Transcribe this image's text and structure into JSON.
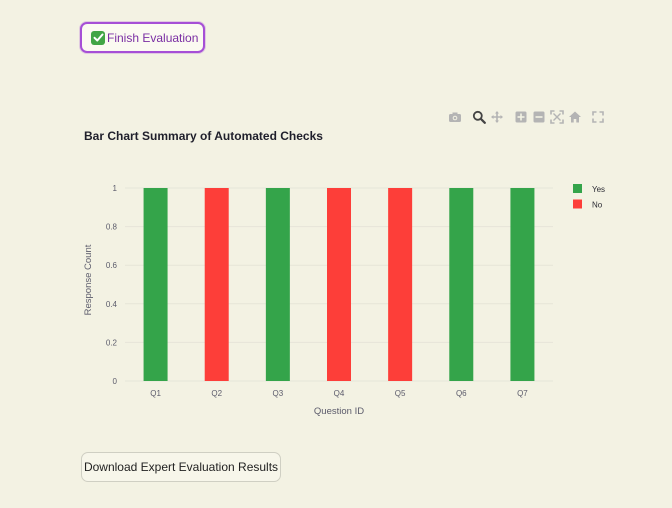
{
  "finish_button": {
    "label": "Finish Evaluation",
    "icon": "check-mark-button-icon"
  },
  "modebar": {
    "icons": [
      "camera-icon",
      "zoom-icon",
      "pan-icon",
      "zoom-in-icon",
      "zoom-out-icon",
      "autoscale-icon",
      "home-icon",
      "fullscreen-icon"
    ]
  },
  "download_button": {
    "label": "Download Expert Evaluation Results"
  },
  "colors": {
    "yes": "#34a44a",
    "no": "#fd3e39",
    "grid": "#e6e5d8",
    "axis_text": "#5b5b6b",
    "background": "#f3f2e3"
  },
  "chart_data": {
    "type": "bar",
    "title": "Bar Chart Summary of Automated Checks",
    "xlabel": "Question ID",
    "ylabel": "Response Count",
    "categories": [
      "Q1",
      "Q2",
      "Q3",
      "Q4",
      "Q5",
      "Q6",
      "Q7"
    ],
    "series": [
      {
        "name": "Yes",
        "values": [
          1,
          0,
          1,
          0,
          0,
          1,
          1
        ]
      },
      {
        "name": "No",
        "values": [
          0,
          1,
          0,
          1,
          1,
          0,
          0
        ]
      }
    ],
    "yticks": [
      "0",
      "0.2",
      "0.4",
      "0.6",
      "0.8",
      "1"
    ],
    "ylim": [
      0,
      1
    ],
    "grid": true,
    "legend_position": "top-right"
  }
}
